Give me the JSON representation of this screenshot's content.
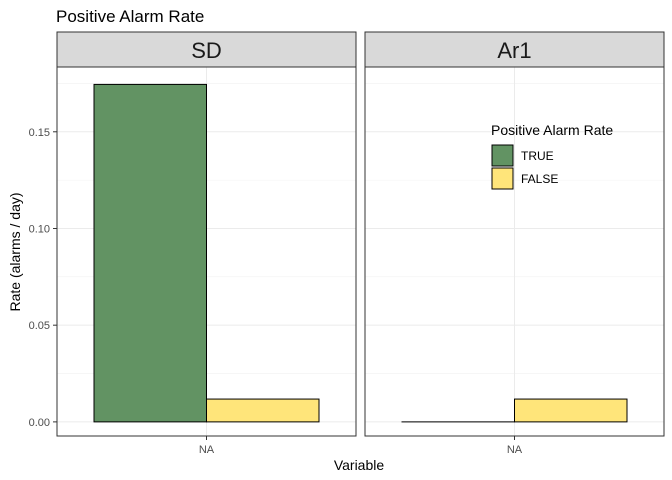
{
  "chart_data": {
    "type": "bar",
    "title": "Positive Alarm Rate",
    "xlabel": "Variable",
    "ylabel": "Rate (alarms / day)",
    "ylim": [
      -0.0073,
      0.1835
    ],
    "yticks": [
      "0.00",
      "0.05",
      "0.10",
      "0.15"
    ],
    "ytick_values": [
      0,
      0.05,
      0.1,
      0.15
    ],
    "grid": true,
    "legend": {
      "title": "Positive Alarm Rate",
      "placement": "inside-top-right of second panel",
      "entries": [
        {
          "label": "TRUE",
          "color": "#629363"
        },
        {
          "label": "FALSE",
          "color": "#FFE57A"
        }
      ]
    },
    "panels": [
      {
        "strip": "SD",
        "categories": [
          "NA"
        ],
        "series": [
          {
            "name": "TRUE",
            "values": [
              0.1745
            ]
          },
          {
            "name": "FALSE",
            "values": [
              0.0118
            ]
          }
        ]
      },
      {
        "strip": "Ar1",
        "categories": [
          "NA"
        ],
        "series": [
          {
            "name": "TRUE",
            "values": [
              0.0
            ]
          },
          {
            "name": "FALSE",
            "values": [
              0.0118
            ]
          }
        ]
      }
    ]
  }
}
